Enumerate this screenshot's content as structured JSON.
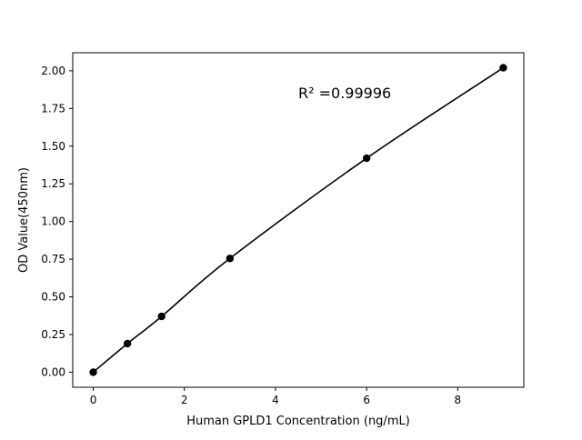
{
  "chart_data": {
    "type": "line",
    "title": "",
    "xlabel": "Human GPLD1 Concentration (ng/mL)",
    "ylabel": "OD Value(450nm)",
    "xlim": [
      -0.45,
      9.45
    ],
    "ylim": [
      -0.1,
      2.12
    ],
    "x_ticks": [
      0,
      2,
      4,
      6,
      8
    ],
    "x_tick_labels": [
      "0",
      "2",
      "4",
      "6",
      "8"
    ],
    "y_ticks": [
      0,
      0.25,
      0.5,
      0.75,
      1.0,
      1.25,
      1.5,
      1.75,
      2.0
    ],
    "y_tick_labels": [
      "0.00",
      "0.25",
      "0.50",
      "0.75",
      "1.00",
      "1.25",
      "1.50",
      "1.75",
      "2.00"
    ],
    "grid": false,
    "series": [
      {
        "x": [
          0,
          0.75,
          1.5,
          3,
          6,
          9
        ],
        "y": [
          0.0,
          0.19,
          0.37,
          0.755,
          1.42,
          2.02
        ],
        "color": "#000000",
        "marker": "circle"
      }
    ],
    "annotation": "R² =0.99996"
  }
}
